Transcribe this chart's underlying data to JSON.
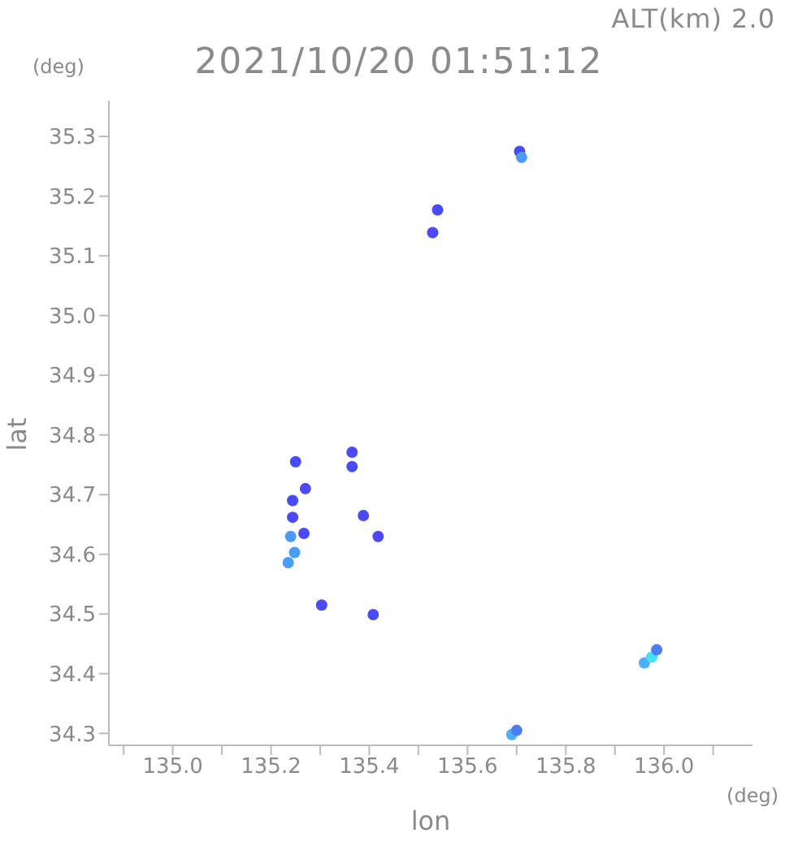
{
  "chart_data": {
    "type": "scatter",
    "title": "2021/10/20 01:51:12",
    "subtitle": "ALT(km) 2.0",
    "xlabel": "lon",
    "ylabel": "lat",
    "annotations": [
      "(deg)",
      "(deg)"
    ],
    "x": [
      135.706,
      135.71,
      135.539,
      135.529,
      135.365,
      135.365,
      135.25,
      135.27,
      135.388,
      135.418,
      135.244,
      135.24,
      135.248,
      135.235,
      135.267,
      135.244,
      135.303,
      135.408,
      135.96,
      135.975,
      135.985,
      135.69,
      135.7
    ],
    "series": [
      {
        "colors": [
          "#4a4af8",
          "#4a9cf8",
          "#4a4af8",
          "#4a4af8",
          "#4a4af8",
          "#4a4af8",
          "#4a4af8",
          "#4a4af8",
          "#4a4af8",
          "#4a4af8",
          "#4a4af8",
          "#4a9cf8",
          "#4a9cf8",
          "#4a9cf8",
          "#4a4af8",
          "#4a4af8",
          "#4a4af8",
          "#4a4af8",
          "#4ab0f8",
          "#48e0f8",
          "#4a7cf8",
          "#4ab0f8",
          "#4a7cf8"
        ],
        "values": [
          35.275,
          35.265,
          35.177,
          35.139,
          34.771,
          34.747,
          34.755,
          34.71,
          34.665,
          34.63,
          34.662,
          34.63,
          34.603,
          34.586,
          34.635,
          34.69,
          34.515,
          34.499,
          34.418,
          34.428,
          34.44,
          34.298,
          34.305
        ]
      }
    ],
    "xlim": [
      134.87,
      136.18
    ],
    "ylim": [
      34.28,
      35.36
    ],
    "xticks": [
      {
        "value": 134.9,
        "label": null
      },
      {
        "value": 135,
        "label": "135.0"
      },
      {
        "value": 135.1,
        "label": null
      },
      135.2,
      {
        "value": 135.3,
        "label": null
      },
      135.4,
      {
        "value": 135.5,
        "label": null
      },
      135.6,
      {
        "value": 135.7,
        "label": null
      },
      135.8,
      {
        "value": 135.9,
        "label": null
      },
      {
        "value": 136,
        "label": "136.0"
      },
      {
        "value": 136.1,
        "label": null
      }
    ],
    "yticks": [
      34.3,
      34.4,
      34.5,
      34.6,
      34.7,
      34.8,
      34.9,
      {
        "value": 35,
        "label": "35.0"
      },
      35.1,
      35.2,
      35.3
    ],
    "grid": false,
    "legend": false,
    "marker": "circle"
  }
}
